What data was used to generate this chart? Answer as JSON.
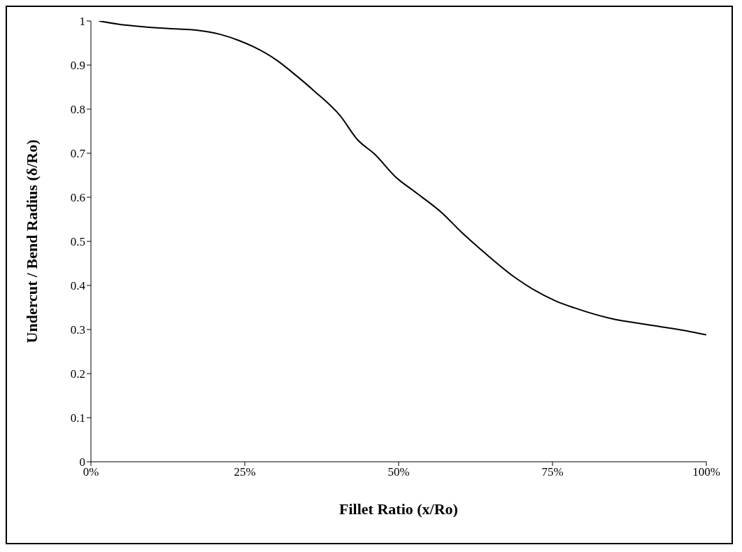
{
  "chart_data": {
    "type": "line",
    "xlabel": "Fillet Ratio (x/Ro)",
    "ylabel": "Undercut / Bend Radius (δ/Ro)",
    "x": [
      1.3,
      4.4,
      8.5,
      12.6,
      17.3,
      20.9,
      24.0,
      26.5,
      30.2,
      33.2,
      36.3,
      40.5,
      43.3,
      46.1,
      49.6,
      52.4,
      57.1,
      60.2,
      63.4,
      68.8,
      75.5,
      78.6,
      84.5,
      90.4,
      97.5,
      100
    ],
    "series": [
      {
        "color": "#000000",
        "values": [
          1.0,
          0.993,
          0.987,
          0.983,
          0.979,
          0.97,
          0.956,
          0.941,
          0.911,
          0.878,
          0.841,
          0.785,
          0.731,
          0.698,
          0.645,
          0.615,
          0.564,
          0.521,
          0.481,
          0.419,
          0.365,
          0.349,
          0.325,
          0.311,
          0.295,
          0.288
        ]
      }
    ],
    "xlim": [
      0,
      100
    ],
    "xticks": [
      {
        "value": 0,
        "label": "0%"
      },
      {
        "value": 25,
        "label": "25%"
      },
      {
        "value": 50,
        "label": "50%"
      },
      {
        "value": 75,
        "label": "75%"
      },
      {
        "value": 100,
        "label": "100%"
      }
    ],
    "ylim": [
      0,
      1
    ],
    "yticks": [
      0,
      0.1,
      0.2,
      0.3,
      0.4,
      0.5,
      0.6,
      0.7,
      0.8,
      0.9,
      1
    ],
    "grid": false,
    "marker": "none",
    "line_style": "solid"
  }
}
